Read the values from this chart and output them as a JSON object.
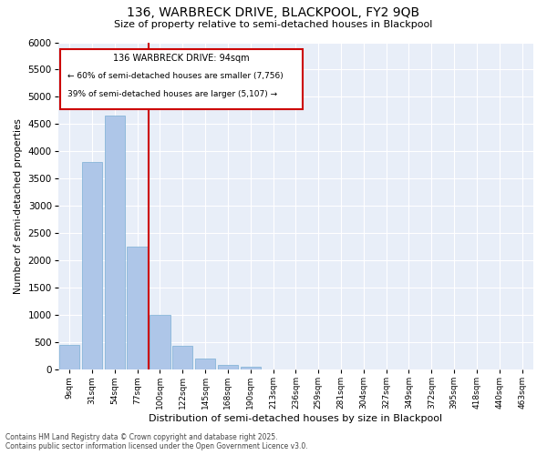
{
  "title": "136, WARBRECK DRIVE, BLACKPOOL, FY2 9QB",
  "subtitle": "Size of property relative to semi-detached houses in Blackpool",
  "xlabel": "Distribution of semi-detached houses by size in Blackpool",
  "ylabel": "Number of semi-detached properties",
  "footer1": "Contains HM Land Registry data © Crown copyright and database right 2025.",
  "footer2": "Contains public sector information licensed under the Open Government Licence v3.0.",
  "property_label": "136 WARBRECK DRIVE: 94sqm",
  "smaller_label": "← 60% of semi-detached houses are smaller (7,756)",
  "larger_label": "39% of semi-detached houses are larger (5,107) →",
  "bar_color": "#aec6e8",
  "bar_edge_color": "#7aafd4",
  "vline_color": "#cc0000",
  "bg_color": "#e8eef8",
  "annotation_box_color": "#cc0000",
  "categories": [
    "9sqm",
    "31sqm",
    "54sqm",
    "77sqm",
    "100sqm",
    "122sqm",
    "145sqm",
    "168sqm",
    "190sqm",
    "213sqm",
    "236sqm",
    "259sqm",
    "281sqm",
    "304sqm",
    "327sqm",
    "349sqm",
    "372sqm",
    "395sqm",
    "418sqm",
    "440sqm",
    "463sqm"
  ],
  "values": [
    450,
    3800,
    4650,
    2250,
    1000,
    430,
    200,
    80,
    55,
    0,
    0,
    0,
    0,
    0,
    0,
    0,
    0,
    0,
    0,
    0,
    0
  ],
  "property_line_x": 4.0,
  "ylim": [
    0,
    6000
  ],
  "yticks": [
    0,
    500,
    1000,
    1500,
    2000,
    2500,
    3000,
    3500,
    4000,
    4500,
    5000,
    5500,
    6000
  ]
}
